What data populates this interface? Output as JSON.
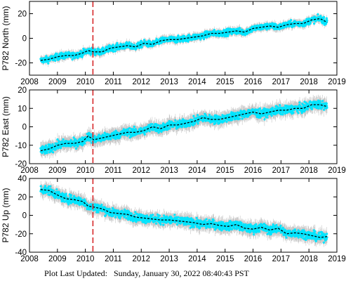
{
  "footer": {
    "label": "Plot Last Updated:",
    "timestamp": "Sunday, January 30, 2022 08:40:43 PST"
  },
  "colors": {
    "points": "#00e5ff",
    "error_bars": "#b3b3b3",
    "fit_line": "#000000",
    "event_line": "#d62728",
    "axis": "#000000"
  },
  "chart_data": [
    {
      "type": "scatter",
      "station": "P782",
      "ylabel": "P782 North (mm)",
      "xlim": [
        2008,
        2019
      ],
      "ylim": [
        -30,
        30
      ],
      "xticks": [
        2008,
        2009,
        2010,
        2011,
        2012,
        2013,
        2014,
        2015,
        2016,
        2017,
        2018,
        2019
      ],
      "yticks": [
        -20,
        0,
        20
      ],
      "event_year": 2010.27,
      "data_range": [
        2008.4,
        2018.65
      ],
      "trend": {
        "x": [
          2008.4,
          2008.7,
          2009.0,
          2009.3,
          2009.6,
          2009.9,
          2010.1,
          2010.3,
          2010.6,
          2010.9,
          2011.2,
          2011.5,
          2011.8,
          2012.1,
          2012.4,
          2012.7,
          2013.0,
          2013.3,
          2013.6,
          2013.9,
          2014.2,
          2014.5,
          2014.8,
          2015.1,
          2015.4,
          2015.7,
          2016.0,
          2016.3,
          2016.6,
          2016.9,
          2017.2,
          2017.5,
          2017.8,
          2018.1,
          2018.4,
          2018.65
        ],
        "y": [
          -18,
          -17,
          -15,
          -14,
          -14,
          -12,
          -10,
          -11,
          -11,
          -8,
          -7,
          -6,
          -7,
          -4,
          -5,
          -2,
          -1,
          -1,
          0,
          1,
          2,
          4,
          4,
          5,
          6,
          5,
          8,
          9,
          10,
          9,
          11,
          12,
          12,
          15,
          16,
          13
        ]
      },
      "scatter_spread": 2.5,
      "error_bar": 2.5
    },
    {
      "type": "scatter",
      "station": "P782",
      "ylabel": "P782 East (mm)",
      "xlim": [
        2008,
        2019
      ],
      "ylim": [
        -20,
        20
      ],
      "xticks": [
        2008,
        2009,
        2010,
        2011,
        2012,
        2013,
        2014,
        2015,
        2016,
        2017,
        2018,
        2019
      ],
      "yticks": [
        -20,
        -10,
        0,
        10,
        20
      ],
      "event_year": 2010.27,
      "data_range": [
        2008.4,
        2018.65
      ],
      "trend": {
        "x": [
          2008.4,
          2008.7,
          2009.0,
          2009.3,
          2009.6,
          2009.9,
          2010.1,
          2010.3,
          2010.6,
          2010.9,
          2011.2,
          2011.5,
          2011.8,
          2012.1,
          2012.4,
          2012.7,
          2013.0,
          2013.3,
          2013.6,
          2013.9,
          2014.2,
          2014.5,
          2014.8,
          2015.1,
          2015.4,
          2015.7,
          2016.0,
          2016.3,
          2016.6,
          2016.9,
          2017.2,
          2017.5,
          2017.8,
          2018.1,
          2018.4,
          2018.65
        ],
        "y": [
          -13,
          -12,
          -10,
          -9,
          -9,
          -8,
          -5,
          -7,
          -6,
          -5,
          -4,
          -3,
          -3,
          -2,
          0,
          -1,
          1,
          1,
          2,
          3,
          5,
          4,
          4,
          5,
          6,
          7,
          8,
          7,
          8,
          9,
          9,
          10,
          10,
          12,
          12,
          11
        ]
      },
      "scatter_spread": 2.2,
      "error_bar": 3
    },
    {
      "type": "scatter",
      "station": "P782",
      "ylabel": "P782 Up (mm)",
      "xlim": [
        2008,
        2019
      ],
      "ylim": [
        -40,
        40
      ],
      "xticks": [
        2008,
        2009,
        2010,
        2011,
        2012,
        2013,
        2014,
        2015,
        2016,
        2017,
        2018,
        2019
      ],
      "yticks": [
        -40,
        -20,
        0,
        20,
        40
      ],
      "event_year": 2010.27,
      "data_range": [
        2008.4,
        2018.65
      ],
      "trend": {
        "x": [
          2008.4,
          2008.7,
          2009.0,
          2009.3,
          2009.6,
          2009.9,
          2010.1,
          2010.3,
          2010.6,
          2010.9,
          2011.2,
          2011.5,
          2011.8,
          2012.1,
          2012.4,
          2012.7,
          2013.0,
          2013.3,
          2013.6,
          2013.9,
          2014.2,
          2014.5,
          2014.8,
          2015.1,
          2015.4,
          2015.7,
          2016.0,
          2016.3,
          2016.6,
          2016.9,
          2017.2,
          2017.5,
          2017.8,
          2018.1,
          2018.4,
          2018.65
        ],
        "y": [
          28,
          27,
          22,
          18,
          17,
          15,
          10,
          9,
          7,
          3,
          2,
          1,
          -2,
          -3,
          -4,
          -5,
          -5,
          -6,
          -7,
          -8,
          -10,
          -9,
          -11,
          -12,
          -10,
          -14,
          -15,
          -13,
          -16,
          -14,
          -20,
          -19,
          -20,
          -22,
          -24,
          -23
        ]
      },
      "scatter_spread": 4.5,
      "error_bar": 6
    }
  ]
}
